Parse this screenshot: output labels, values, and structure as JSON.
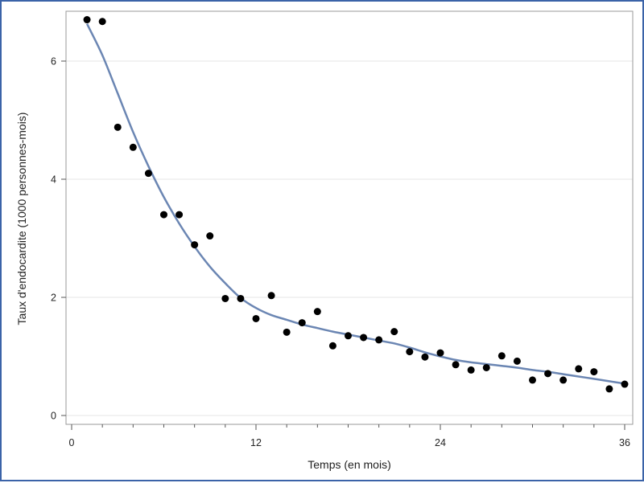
{
  "chart_data": {
    "type": "scatter",
    "title": "",
    "xlabel": "Temps (en mois)",
    "ylabel": "Taux d'endocardite (1000 personnes-mois)",
    "xlim": [
      0,
      36
    ],
    "ylim": [
      0,
      6.8
    ],
    "x_ticks": [
      0,
      12,
      24,
      36
    ],
    "x_tick_labels": [
      "0",
      "12",
      "24",
      "36"
    ],
    "y_ticks": [
      0,
      2,
      4,
      6
    ],
    "y_tick_labels": [
      "0",
      "2",
      "4",
      "6"
    ],
    "grid": "horizontal",
    "point_color": "#000000",
    "line_color": "#6b86b3",
    "points": [
      {
        "x": 1,
        "y": 6.7
      },
      {
        "x": 2,
        "y": 6.67
      },
      {
        "x": 3,
        "y": 4.88
      },
      {
        "x": 4,
        "y": 4.54
      },
      {
        "x": 5,
        "y": 4.1
      },
      {
        "x": 6,
        "y": 3.4
      },
      {
        "x": 7,
        "y": 3.4
      },
      {
        "x": 8,
        "y": 2.89
      },
      {
        "x": 9,
        "y": 3.04
      },
      {
        "x": 10,
        "y": 1.98
      },
      {
        "x": 11,
        "y": 1.98
      },
      {
        "x": 12,
        "y": 1.64
      },
      {
        "x": 13,
        "y": 2.03
      },
      {
        "x": 14,
        "y": 1.41
      },
      {
        "x": 15,
        "y": 1.57
      },
      {
        "x": 16,
        "y": 1.76
      },
      {
        "x": 17,
        "y": 1.18
      },
      {
        "x": 18,
        "y": 1.35
      },
      {
        "x": 19,
        "y": 1.32
      },
      {
        "x": 20,
        "y": 1.28
      },
      {
        "x": 21,
        "y": 1.42
      },
      {
        "x": 22,
        "y": 1.08
      },
      {
        "x": 23,
        "y": 0.99
      },
      {
        "x": 24,
        "y": 1.06
      },
      {
        "x": 25,
        "y": 0.86
      },
      {
        "x": 26,
        "y": 0.77
      },
      {
        "x": 27,
        "y": 0.81
      },
      {
        "x": 28,
        "y": 1.01
      },
      {
        "x": 29,
        "y": 0.92
      },
      {
        "x": 30,
        "y": 0.6
      },
      {
        "x": 31,
        "y": 0.71
      },
      {
        "x": 32,
        "y": 0.6
      },
      {
        "x": 33,
        "y": 0.79
      },
      {
        "x": 34,
        "y": 0.74
      },
      {
        "x": 35,
        "y": 0.45
      },
      {
        "x": 36,
        "y": 0.53
      }
    ],
    "curve": [
      {
        "x": 1,
        "y": 6.63
      },
      {
        "x": 2,
        "y": 6.1
      },
      {
        "x": 3,
        "y": 5.45
      },
      {
        "x": 4,
        "y": 4.8
      },
      {
        "x": 5,
        "y": 4.22
      },
      {
        "x": 6,
        "y": 3.7
      },
      {
        "x": 7,
        "y": 3.25
      },
      {
        "x": 8,
        "y": 2.86
      },
      {
        "x": 9,
        "y": 2.52
      },
      {
        "x": 10,
        "y": 2.24
      },
      {
        "x": 11,
        "y": 1.99
      },
      {
        "x": 12,
        "y": 1.82
      },
      {
        "x": 13,
        "y": 1.7
      },
      {
        "x": 14,
        "y": 1.62
      },
      {
        "x": 15,
        "y": 1.54
      },
      {
        "x": 16,
        "y": 1.48
      },
      {
        "x": 17,
        "y": 1.42
      },
      {
        "x": 18,
        "y": 1.37
      },
      {
        "x": 19,
        "y": 1.32
      },
      {
        "x": 20,
        "y": 1.27
      },
      {
        "x": 21,
        "y": 1.22
      },
      {
        "x": 22,
        "y": 1.15
      },
      {
        "x": 23,
        "y": 1.07
      },
      {
        "x": 24,
        "y": 1.0
      },
      {
        "x": 25,
        "y": 0.94
      },
      {
        "x": 26,
        "y": 0.9
      },
      {
        "x": 27,
        "y": 0.87
      },
      {
        "x": 28,
        "y": 0.84
      },
      {
        "x": 29,
        "y": 0.81
      },
      {
        "x": 30,
        "y": 0.77
      },
      {
        "x": 31,
        "y": 0.74
      },
      {
        "x": 32,
        "y": 0.7
      },
      {
        "x": 33,
        "y": 0.66
      },
      {
        "x": 34,
        "y": 0.62
      },
      {
        "x": 35,
        "y": 0.58
      },
      {
        "x": 36,
        "y": 0.54
      }
    ]
  }
}
